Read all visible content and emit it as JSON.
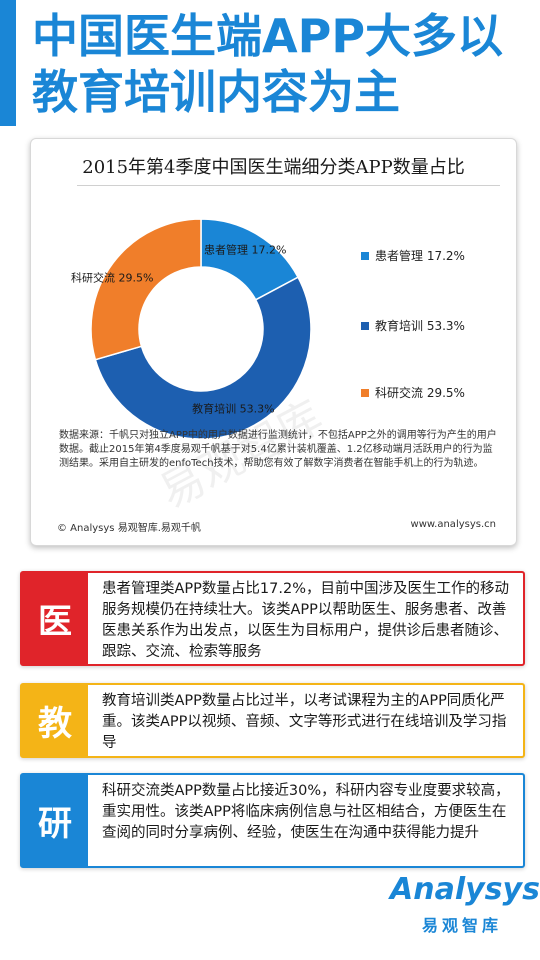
{
  "header": {
    "title": "中国医生端APP大多以教育培训内容为主"
  },
  "chart_data": {
    "type": "pie",
    "style": "donut",
    "title": "2015年第4季度中国医生端细分类APP数量占比",
    "categories": [
      "患者管理",
      "教育培训",
      "科研交流"
    ],
    "values": [
      17.2,
      53.3,
      29.5
    ],
    "labels": [
      "患者管理 17.2%",
      "教育培训 53.3%",
      "科研交流 29.5%"
    ],
    "colors": [
      "#1a86d6",
      "#1d5fb0",
      "#f07e2a"
    ],
    "legend_position": "right"
  },
  "chart_card": {
    "source_note": "数据来源：千帆只对独立APP中的用户数据进行监测统计，不包括APP之外的调用等行为产生的用户数据。截止2015年第4季度易观千帆基于对5.4亿累计装机覆盖、1.2亿移动端月活跃用户的行为监测结果。采用自主研发的enfoTech技术，帮助您有效了解数字消费者在智能手机上的行为轨迹。",
    "copyright": "© Analysys 易观智库.易观千帆",
    "website": "www.analysys.cn",
    "watermark": "易观智库"
  },
  "info_boxes": [
    {
      "icon_char": "医",
      "color": "#e0242a",
      "text": "患者管理类APP数量占比17.2%，目前中国涉及医生工作的移动服务规模仍在持续壮大。该类APP以帮助医生、服务患者、改善医患关系作为出发点，以医生为目标用户，提供诊后患者随诊、跟踪、交流、检索等服务"
    },
    {
      "icon_char": "教",
      "color": "#f4b417",
      "text": "教育培训类APP数量占比过半，以考试课程为主的APP同质化严重。该类APP以视频、音频、文字等形式进行在线培训及学习指导"
    },
    {
      "icon_char": "研",
      "color": "#1a86d6",
      "text": "科研交流类APP数量占比接近30%，科研内容专业度要求较高，重实用性。该类APP将临床病例信息与社区相结合，方便医生在查阅的同时分享病例、经验，使医生在沟通中获得能力提升"
    }
  ],
  "brand": {
    "name": "Analysys",
    "sub": "易观智库"
  }
}
